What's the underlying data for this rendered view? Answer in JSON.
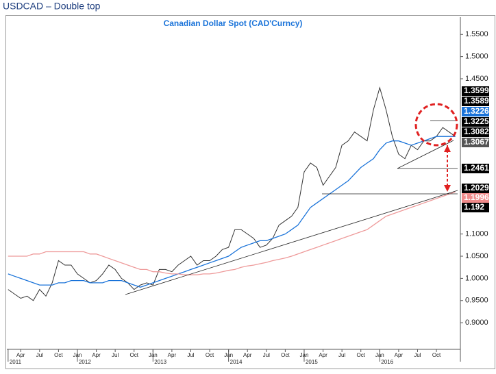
{
  "header": {
    "title": "USDCAD – Double top"
  },
  "chart_data": {
    "type": "line",
    "title": "Canadian Dollar Spot (CAD'Curncy)",
    "x": [
      1,
      2,
      3,
      4,
      5,
      6,
      7,
      8,
      9,
      10,
      11,
      12,
      13,
      14,
      15,
      16,
      17,
      18,
      19,
      20,
      21,
      22,
      23,
      24,
      25,
      26,
      27,
      28,
      29,
      30,
      31,
      32,
      33,
      34,
      35,
      36,
      37,
      38,
      39,
      40,
      41,
      42,
      43,
      44,
      45,
      46,
      47,
      48,
      49,
      50,
      51,
      52,
      53,
      54,
      55,
      56,
      57,
      58,
      59,
      60,
      61,
      62,
      63,
      64,
      65,
      66,
      67,
      68,
      69,
      70,
      71,
      72
    ],
    "xlim": [
      0.8,
      72.8
    ],
    "ylim": [
      0.84,
      1.589
    ],
    "series": [
      {
        "color": "#333333",
        "values": [
          0.975,
          0.965,
          0.955,
          0.96,
          0.95,
          0.975,
          0.96,
          0.99,
          1.04,
          1.03,
          1.03,
          1.01,
          1.0,
          0.99,
          0.995,
          1.01,
          1.03,
          1.02,
          1.0,
          0.99,
          0.975,
          0.985,
          0.99,
          0.985,
          1.02,
          1.02,
          1.015,
          1.03,
          1.04,
          1.05,
          1.03,
          1.04,
          1.04,
          1.05,
          1.065,
          1.07,
          1.11,
          1.11,
          1.1,
          1.09,
          1.07,
          1.075,
          1.09,
          1.12,
          1.13,
          1.14,
          1.16,
          1.24,
          1.26,
          1.25,
          1.21,
          1.23,
          1.25,
          1.3,
          1.31,
          1.33,
          1.32,
          1.31,
          1.38,
          1.43,
          1.38,
          1.32,
          1.28,
          1.27,
          1.3,
          1.29,
          1.31,
          1.31,
          1.32,
          1.34,
          1.33,
          1.32
        ]
      },
      {
        "color": "#1a73d9",
        "values": [
          1.01,
          1.005,
          1.0,
          0.995,
          0.99,
          0.985,
          0.985,
          0.985,
          0.99,
          0.99,
          0.995,
          0.995,
          0.995,
          0.99,
          0.99,
          0.99,
          0.995,
          0.995,
          0.995,
          0.99,
          0.985,
          0.98,
          0.985,
          0.99,
          0.995,
          1.0,
          1.005,
          1.01,
          1.015,
          1.02,
          1.025,
          1.03,
          1.035,
          1.04,
          1.045,
          1.05,
          1.06,
          1.07,
          1.075,
          1.08,
          1.085,
          1.085,
          1.09,
          1.095,
          1.1,
          1.11,
          1.12,
          1.14,
          1.16,
          1.17,
          1.18,
          1.19,
          1.2,
          1.21,
          1.22,
          1.235,
          1.25,
          1.26,
          1.27,
          1.29,
          1.305,
          1.31,
          1.31,
          1.305,
          1.3,
          1.305,
          1.31,
          1.315,
          1.32,
          1.32,
          1.32,
          1.32
        ]
      },
      {
        "color": "#ee9a9a",
        "values": [
          1.05,
          1.05,
          1.05,
          1.05,
          1.055,
          1.055,
          1.06,
          1.06,
          1.06,
          1.06,
          1.06,
          1.06,
          1.06,
          1.055,
          1.055,
          1.05,
          1.045,
          1.04,
          1.035,
          1.03,
          1.025,
          1.02,
          1.02,
          1.015,
          1.015,
          1.012,
          1.01,
          1.01,
          1.008,
          1.008,
          1.008,
          1.01,
          1.01,
          1.012,
          1.015,
          1.018,
          1.02,
          1.025,
          1.028,
          1.03,
          1.033,
          1.036,
          1.04,
          1.043,
          1.046,
          1.05,
          1.055,
          1.06,
          1.065,
          1.07,
          1.075,
          1.08,
          1.085,
          1.09,
          1.095,
          1.1,
          1.105,
          1.11,
          1.12,
          1.13,
          1.14,
          1.145,
          1.15,
          1.155,
          1.16,
          1.165,
          1.17,
          1.175,
          1.18,
          1.185,
          1.19,
          1.195
        ]
      }
    ],
    "yticks": [
      {
        "value": 1.55,
        "label": "1.5500"
      },
      {
        "value": 1.5,
        "label": "1.5000"
      },
      {
        "value": 1.45,
        "label": "1.4500"
      },
      {
        "value": 1.1,
        "label": "1.1000"
      },
      {
        "value": 1.05,
        "label": "1.0500"
      },
      {
        "value": 1.0,
        "label": "1.0000"
      },
      {
        "value": 0.95,
        "label": "0.9500"
      },
      {
        "value": 0.9,
        "label": "0.9000"
      }
    ],
    "xticks": [
      {
        "value": 3,
        "label": "Apr"
      },
      {
        "value": 6,
        "label": "Jul"
      },
      {
        "value": 9,
        "label": "Oct"
      },
      {
        "value": 12,
        "label": "Jan"
      },
      {
        "value": 15,
        "label": "Apr"
      },
      {
        "value": 18,
        "label": "Jul"
      },
      {
        "value": 21,
        "label": "Oct"
      },
      {
        "value": 24,
        "label": "Jan"
      },
      {
        "value": 27,
        "label": "Apr"
      },
      {
        "value": 30,
        "label": "Jul"
      },
      {
        "value": 33,
        "label": "Oct"
      },
      {
        "value": 36,
        "label": "Jan"
      },
      {
        "value": 39,
        "label": "Apr"
      },
      {
        "value": 42,
        "label": "Jul"
      },
      {
        "value": 45,
        "label": "Oct"
      },
      {
        "value": 48,
        "label": "Jan"
      },
      {
        "value": 51,
        "label": "Apr"
      },
      {
        "value": 54,
        "label": "Jul"
      },
      {
        "value": 57,
        "label": "Oct"
      },
      {
        "value": 60,
        "label": "Jan"
      },
      {
        "value": 63,
        "label": "Apr"
      },
      {
        "value": 66,
        "label": "Jul"
      },
      {
        "value": 69,
        "label": "Oct"
      }
    ],
    "year_ticks": [
      {
        "value": 1,
        "label": "2011"
      },
      {
        "value": 12,
        "label": "2012"
      },
      {
        "value": 24,
        "label": "2013"
      },
      {
        "value": 36,
        "label": "2014"
      },
      {
        "value": 48,
        "label": "2015"
      },
      {
        "value": 60,
        "label": "2016"
      }
    ],
    "levels": [
      {
        "value": 1.3599,
        "color": "#000000"
      },
      {
        "value": 1.3589,
        "color": "#000000"
      },
      {
        "value": 1.3226,
        "color": "#1a73d9"
      },
      {
        "value": 1.3225,
        "color": "#000000"
      },
      {
        "value": 1.3082,
        "color": "#000000"
      },
      {
        "value": 1.3067,
        "color": "#555555"
      },
      {
        "value": 1.2461,
        "color": "#000000"
      },
      {
        "value": 1.2029,
        "color": "#000000"
      },
      {
        "value": 1.1996,
        "color": "#f08a8a"
      },
      {
        "value": 1.192,
        "color": "#000000"
      }
    ]
  }
}
